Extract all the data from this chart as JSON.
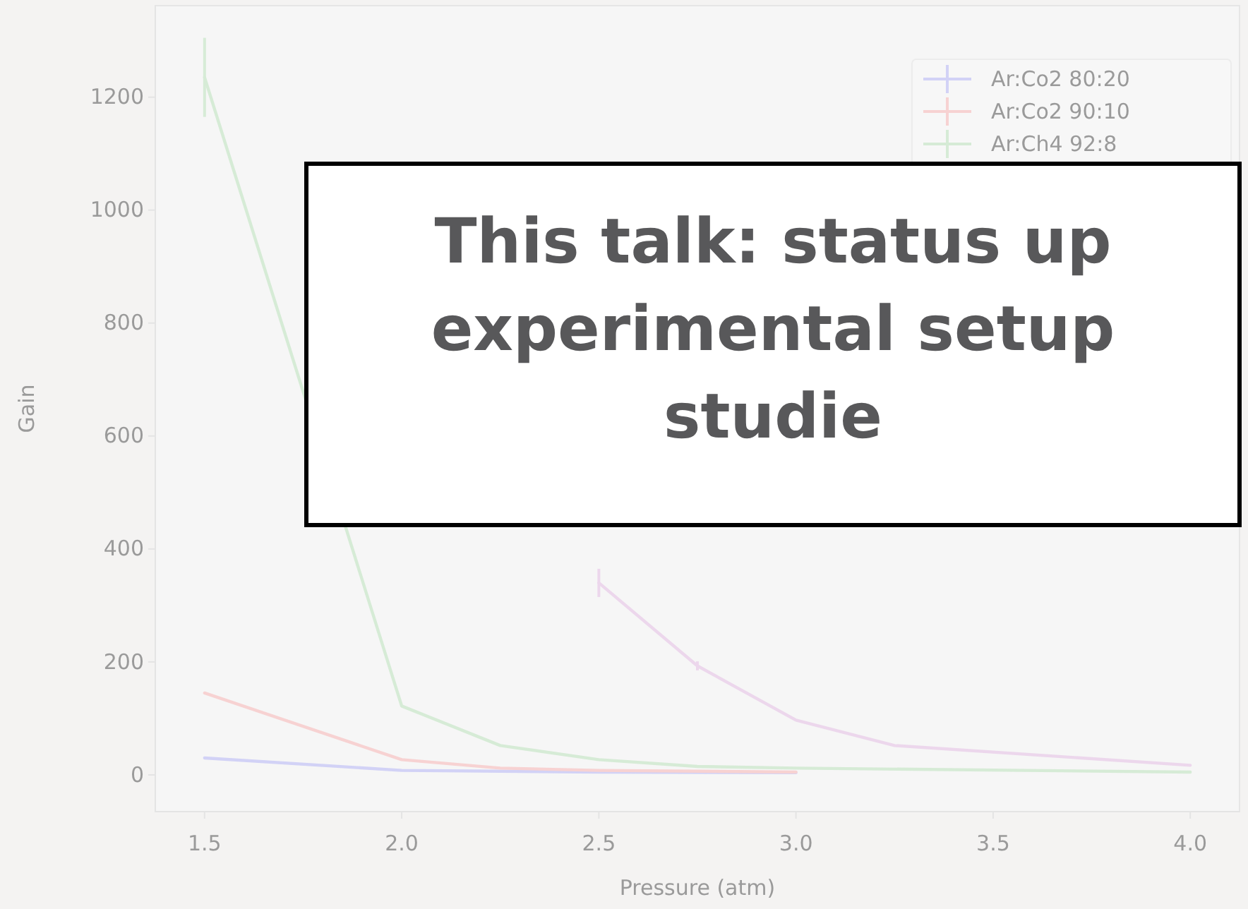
{
  "chart_data": {
    "type": "line",
    "xlabel": "Pressure (atm)",
    "ylabel": "Gain",
    "xlim": [
      1.375,
      4.125
    ],
    "ylim": [
      -65,
      1362
    ],
    "xticks": [
      {
        "value": 1.5,
        "label": "1.5"
      },
      {
        "value": 2.0,
        "label": "2.0"
      },
      {
        "value": 2.5,
        "label": "2.5"
      },
      {
        "value": 3.0,
        "label": "3.0"
      },
      {
        "value": 3.5,
        "label": "3.5"
      },
      {
        "value": 4.0,
        "label": "4.0"
      }
    ],
    "yticks": [
      0,
      200,
      400,
      600,
      800,
      1000,
      1200
    ],
    "grid": false,
    "legend": "top right",
    "marker": "none",
    "line_style": "solid",
    "series": [
      {
        "name": "Ar:Co2 80:20",
        "color": "#d2d2f6",
        "x": [
          1.5,
          2.0,
          2.5,
          3.0
        ],
        "values": [
          30,
          8,
          5,
          4
        ]
      },
      {
        "name": "Ar:Co2 90:10",
        "color": "#f7d2d2",
        "x": [
          1.5,
          2.0,
          2.25,
          2.5,
          3.0
        ],
        "values": [
          145,
          27,
          12,
          8,
          5
        ]
      },
      {
        "name": "Ar:Ch4 92:8",
        "color": "#d6ebd6",
        "x": [
          1.5,
          2.0,
          2.25,
          2.5,
          2.75,
          3.0,
          4.0
        ],
        "values": [
          1235,
          122,
          52,
          27,
          15,
          12,
          5
        ],
        "errors": [
          70,
          null,
          null,
          null,
          null,
          null,
          null
        ]
      },
      {
        "color": "#ecd7ec",
        "x": [
          2.5,
          2.75,
          3.0,
          3.25,
          4.0
        ],
        "values": [
          340,
          193,
          97,
          52,
          17
        ],
        "errors": [
          25,
          8,
          null,
          null,
          null
        ]
      }
    ],
    "annotations": [
      "This talk: status up\nexperimental setup\nstudie"
    ]
  }
}
